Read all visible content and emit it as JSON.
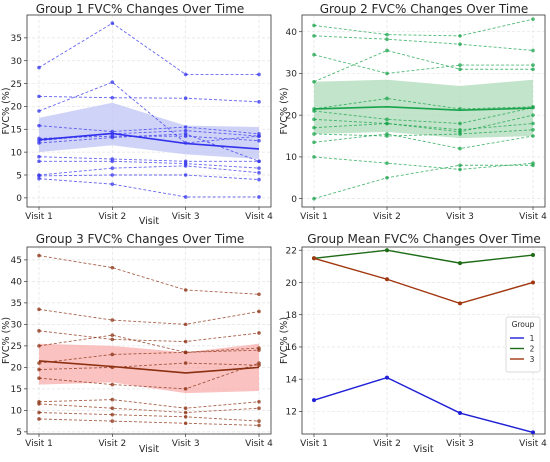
{
  "chart_data": [
    {
      "type": "line",
      "title": "Group 1 FVC% Changes Over Time",
      "xlabel": "Visit",
      "ylabel": "FVC% (%)",
      "categories": [
        "Visit 1",
        "Visit 2",
        "Visit 3",
        "Visit 4"
      ],
      "ylim": [
        -2,
        40
      ],
      "yticks": [
        0,
        5,
        10,
        15,
        20,
        25,
        30,
        35
      ],
      "grid": true,
      "color": "#3333ee",
      "band_color": "#bcc0f5",
      "individual_series": [
        [
          28.5,
          38.2,
          27.0,
          27.0
        ],
        [
          19.0,
          25.3,
          12.0,
          13.5
        ],
        [
          22.2,
          21.9,
          21.8,
          21.0
        ],
        [
          15.8,
          14.5,
          15.5,
          14.0
        ],
        [
          12.5,
          14.0,
          14.7,
          13.5
        ],
        [
          13.0,
          13.5,
          13.5,
          12.5
        ],
        [
          12.0,
          13.2,
          14.0,
          8.0
        ],
        [
          9.0,
          8.5,
          8.0,
          8.0
        ],
        [
          8.0,
          8.0,
          7.5,
          6.5
        ],
        [
          5.0,
          6.5,
          7.0,
          5.5
        ],
        [
          4.8,
          5.0,
          5.0,
          4.0
        ],
        [
          4.2,
          3.0,
          0.2,
          0.2
        ]
      ],
      "mean": [
        12.7,
        14.1,
        11.9,
        10.7
      ],
      "band_lower": [
        10.0,
        11.5,
        9.5,
        8.5
      ],
      "band_upper": [
        17.5,
        20.8,
        15.8,
        15.5
      ]
    },
    {
      "type": "line",
      "title": "Group 2 FVC% Changes Over Time",
      "xlabel": "",
      "ylabel": "FVC% (%)",
      "categories": [
        "Visit 1",
        "Visit 2",
        "Visit 3",
        "Visit 4"
      ],
      "ylim": [
        -2,
        44
      ],
      "yticks": [
        0,
        10,
        20,
        30,
        40
      ],
      "grid": true,
      "color": "#17a34a",
      "band_color": "#a8d8b4",
      "individual_series": [
        [
          41.5,
          39.3,
          39.0,
          43.0
        ],
        [
          39.0,
          38.2,
          37.0,
          35.5
        ],
        [
          34.5,
          30.0,
          32.0,
          32.0
        ],
        [
          28.0,
          35.5,
          31.0,
          31.0
        ],
        [
          21.5,
          24.0,
          21.5,
          22.0
        ],
        [
          21.0,
          19.0,
          18.0,
          21.8
        ],
        [
          19.0,
          18.0,
          16.0,
          20.0
        ],
        [
          17.0,
          18.0,
          16.5,
          18.0
        ],
        [
          15.5,
          15.0,
          15.5,
          16.5
        ],
        [
          13.5,
          15.5,
          12.0,
          15.0
        ],
        [
          10.0,
          8.5,
          7.0,
          8.5
        ],
        [
          0.0,
          5.0,
          8.0,
          8.0
        ]
      ],
      "mean": [
        21.5,
        22.0,
        21.2,
        21.7
      ],
      "band_lower": [
        15.5,
        16.0,
        14.5,
        15.0
      ],
      "band_upper": [
        28.0,
        28.5,
        27.0,
        28.5
      ]
    },
    {
      "type": "line",
      "title": "Group 3 FVC% Changes Over Time",
      "xlabel": "Visit",
      "ylabel": "FVC% (%)",
      "categories": [
        "Visit 1",
        "Visit 2",
        "Visit 3",
        "Visit 4"
      ],
      "ylim": [
        4.5,
        48
      ],
      "yticks": [
        5,
        10,
        15,
        20,
        25,
        30,
        35,
        40,
        45
      ],
      "grid": true,
      "color": "#8b2f10",
      "band_color": "#f8aaa8",
      "individual_series": [
        [
          46.0,
          43.2,
          38.0,
          37.0
        ],
        [
          33.5,
          31.0,
          30.0,
          33.0
        ],
        [
          28.5,
          26.5,
          26.0,
          28.0
        ],
        [
          25.0,
          27.5,
          23.5,
          24.5
        ],
        [
          21.0,
          23.0,
          23.5,
          24.0
        ],
        [
          19.5,
          20.0,
          21.0,
          20.5
        ],
        [
          17.5,
          16.0,
          15.0,
          21.0
        ],
        [
          12.0,
          12.5,
          10.5,
          12.0
        ],
        [
          11.5,
          10.5,
          9.5,
          10.5
        ],
        [
          9.5,
          9.0,
          8.5,
          7.5
        ],
        [
          8.0,
          7.5,
          7.0,
          6.5
        ]
      ],
      "mean": [
        21.5,
        20.2,
        18.7,
        20.0
      ],
      "band_lower": [
        16.0,
        16.5,
        14.0,
        14.5
      ],
      "band_upper": [
        25.5,
        25.0,
        23.5,
        25.5
      ]
    },
    {
      "type": "line",
      "title": "Group Mean FVC% Changes Over Time",
      "xlabel": "Visit",
      "ylabel": "FVC% (%)",
      "categories": [
        "Visit 1",
        "Visit 2",
        "Visit 3",
        "Visit 4"
      ],
      "ylim": [
        10.6,
        22.2
      ],
      "yticks": [
        12,
        14,
        16,
        18,
        20,
        22
      ],
      "grid": true,
      "legend_title": "Group",
      "legend_position": "right",
      "series": [
        {
          "name": "1",
          "color": "#1f1fd6",
          "values": [
            12.7,
            14.1,
            11.9,
            10.7
          ]
        },
        {
          "name": "2",
          "color": "#1e6b17",
          "values": [
            21.5,
            22.0,
            21.2,
            21.7
          ]
        },
        {
          "name": "3",
          "color": "#a0360f",
          "values": [
            21.5,
            20.2,
            18.7,
            20.0
          ]
        }
      ]
    }
  ]
}
